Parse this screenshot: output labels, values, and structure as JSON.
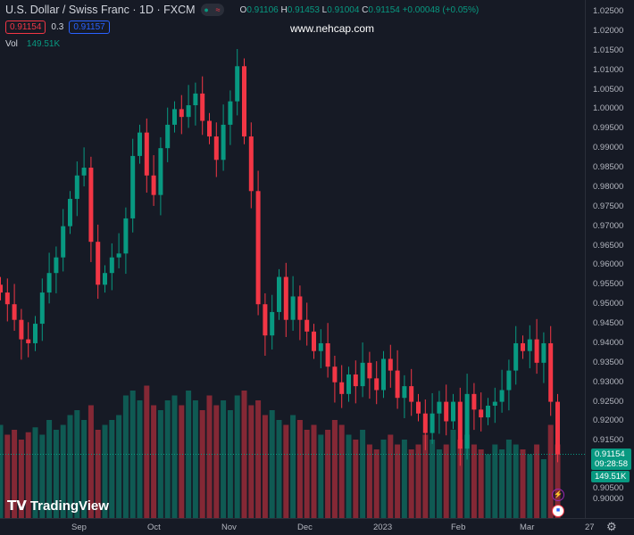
{
  "header": {
    "title": "U.S. Dollar / Swiss Franc · 1D · FXCM",
    "o_label": "O",
    "o": "0.91106",
    "h_label": "H",
    "h": "0.91453",
    "l_label": "L",
    "l": "0.91004",
    "c_label": "C",
    "c": "0.91154",
    "change": "+0.00048 (+0.05%)",
    "bid": "0.91154",
    "spread": "0.3",
    "ask": "0.91157",
    "vol_label": "Vol",
    "vol": "149.51K"
  },
  "watermark": "www.nehcap.com",
  "price_axis": [
    "1.02500",
    "1.02000",
    "1.01500",
    "1.01000",
    "1.00500",
    "1.00000",
    "0.99500",
    "0.99000",
    "0.98500",
    "0.98000",
    "0.97500",
    "0.97000",
    "0.96500",
    "0.96000",
    "0.95500",
    "0.95000",
    "0.94500",
    "0.94000",
    "0.93500",
    "0.93000",
    "0.92500",
    "0.92000",
    "0.91500",
    "0.90500",
    "0.90000"
  ],
  "last_price": {
    "price": "0.91154",
    "countdown": "09:28:58",
    "volume": "149.51K"
  },
  "time_axis": [
    {
      "label": "Sep"
    },
    {
      "label": "Oct"
    },
    {
      "label": "Nov"
    },
    {
      "label": "Dec"
    },
    {
      "label": "2023"
    },
    {
      "label": "Feb"
    },
    {
      "label": "Mar"
    },
    {
      "label": "27"
    }
  ],
  "logo": "TradingView",
  "colors": {
    "up": "#089981",
    "down": "#f23645",
    "bg": "#161a25"
  },
  "chart_data": {
    "type": "candlestick",
    "ylim": [
      0.9,
      1.025
    ],
    "closes": [
      0.953,
      0.95,
      0.946,
      0.941,
      0.94,
      0.945,
      0.953,
      0.958,
      0.962,
      0.97,
      0.977,
      0.983,
      0.985,
      0.966,
      0.955,
      0.958,
      0.962,
      0.963,
      0.972,
      0.988,
      0.994,
      0.983,
      0.978,
      0.99,
      0.996,
      1.0,
      0.998,
      1.001,
      1.004,
      0.997,
      0.993,
      0.987,
      0.996,
      1.002,
      1.011,
      0.993,
      0.979,
      0.95,
      0.942,
      0.948,
      0.957,
      0.946,
      0.952,
      0.946,
      0.943,
      0.938,
      0.94,
      0.934,
      0.93,
      0.927,
      0.932,
      0.929,
      0.935,
      0.931,
      0.928,
      0.936,
      0.933,
      0.926,
      0.929,
      0.925,
      0.922,
      0.917,
      0.922,
      0.925,
      0.92,
      0.925,
      0.913,
      0.927,
      0.923,
      0.921,
      0.924,
      0.925,
      0.928,
      0.933,
      0.94,
      0.938,
      0.941,
      0.935,
      0.94,
      0.925,
      0.9115
    ],
    "volumes_k": [
      190,
      170,
      180,
      160,
      175,
      185,
      170,
      200,
      180,
      190,
      210,
      220,
      200,
      230,
      180,
      190,
      200,
      210,
      250,
      260,
      240,
      270,
      230,
      220,
      240,
      250,
      230,
      260,
      240,
      220,
      250,
      230,
      240,
      220,
      250,
      260,
      230,
      240,
      210,
      220,
      200,
      190,
      210,
      200,
      180,
      190,
      170,
      180,
      200,
      190,
      170,
      160,
      180,
      150,
      140,
      160,
      170,
      150,
      160,
      140,
      150,
      170,
      160,
      140,
      150,
      180,
      160,
      170,
      150,
      140,
      130,
      150,
      140,
      160,
      150,
      140,
      130,
      150,
      120,
      190,
      150
    ]
  }
}
